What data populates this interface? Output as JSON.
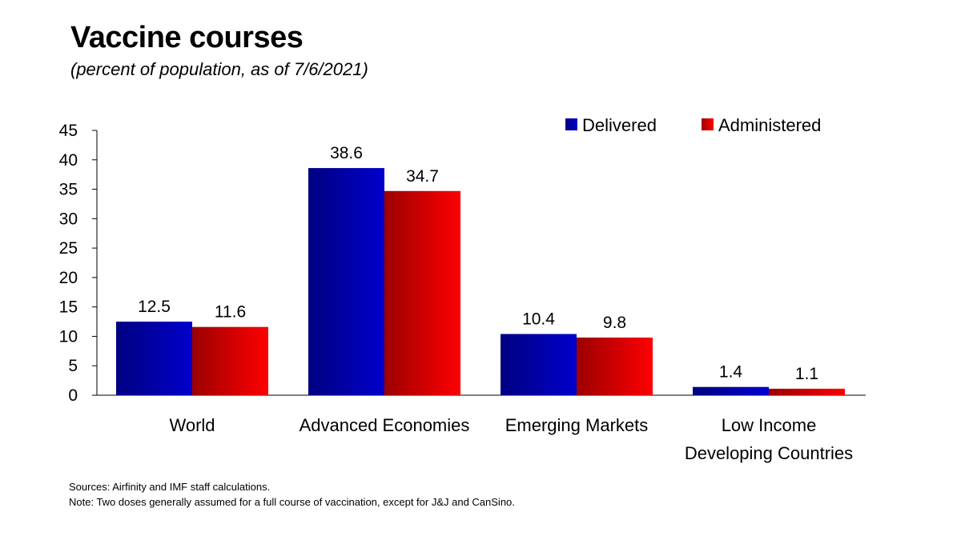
{
  "header": {
    "title": "Vaccine courses",
    "subtitle": "(percent of population, as of 7/6/2021)"
  },
  "footer": {
    "sources": "Sources: Airfinity and IMF staff calculations.",
    "note": "Note: Two doses generally assumed for a full course of vaccination, except  for J&J and CanSino."
  },
  "chart_data": {
    "type": "bar",
    "title": "Vaccine courses",
    "subtitle": "(percent of population, as of 7/6/2021)",
    "categories": [
      [
        "World"
      ],
      [
        "Advanced Economies"
      ],
      [
        "Emerging Markets"
      ],
      [
        "Low Income",
        "Developing Countries"
      ]
    ],
    "series": [
      {
        "name": "Delivered",
        "values": [
          12.5,
          38.6,
          10.4,
          1.4
        ],
        "color": "#0000CC",
        "color_dark": "#000080"
      },
      {
        "name": "Administered",
        "values": [
          11.6,
          34.7,
          9.8,
          1.1
        ],
        "color": "#FF0000",
        "color_dark": "#9C0000"
      }
    ],
    "data_labels": [
      [
        "12.5",
        "38.6",
        "10.4",
        "1.4"
      ],
      [
        "11.6",
        "34.7",
        "9.8",
        "1.1"
      ]
    ],
    "yticks": [
      "0",
      "5",
      "10",
      "15",
      "20",
      "25",
      "30",
      "35",
      "40",
      "45"
    ],
    "ylim": [
      0,
      45
    ],
    "xlabel": "",
    "ylabel": "",
    "grid": false,
    "legend": "top-right"
  }
}
